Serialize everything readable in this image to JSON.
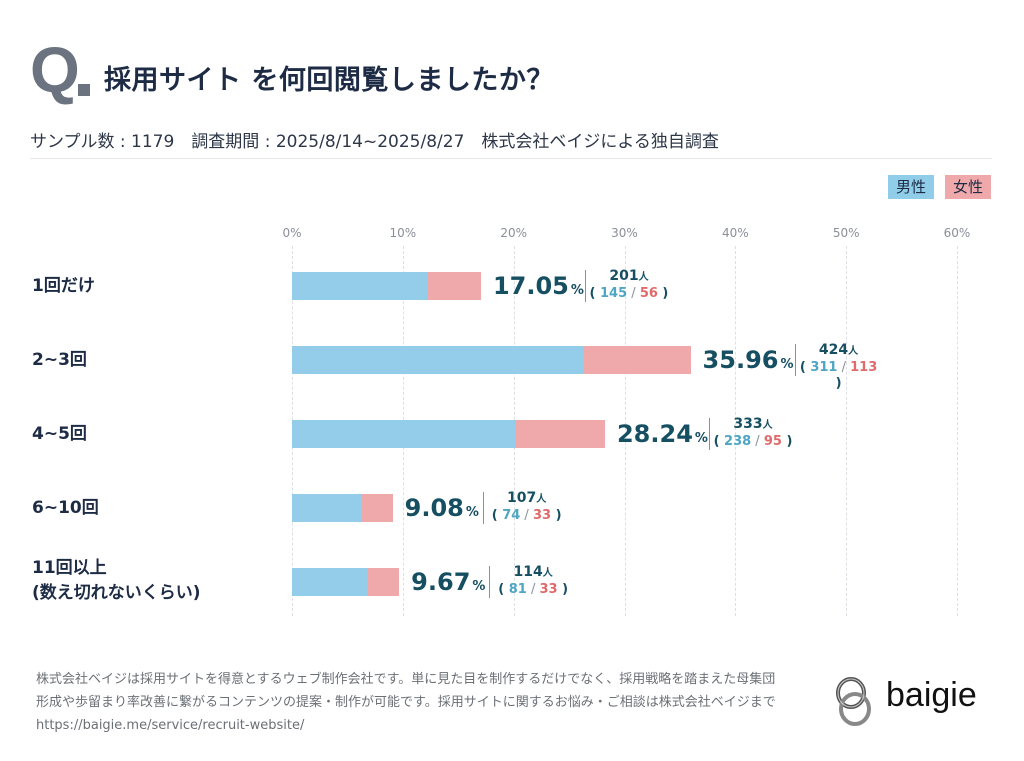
{
  "header": {
    "q_mark": "Q",
    "title": "採用サイト を何回閲覧しましたか？",
    "meta": "サンプル数 : 1179　調査期間 : 2025/8/14~2025/8/27　株式会社ベイジによる独自調査"
  },
  "legend": {
    "male": "男性",
    "female": "女性"
  },
  "colors": {
    "male": "#94cde9",
    "female": "#f0a9ab",
    "value_text": "#164f62",
    "male_text": "#4ea5c4",
    "female_text": "#e06a6c"
  },
  "chart_data": {
    "type": "bar",
    "orientation": "horizontal",
    "stacked": true,
    "title": "採用サイト を何回閲覧しましたか？",
    "xlabel": "",
    "ylabel": "",
    "xlim": [
      0,
      60
    ],
    "x_ticks": [
      "0%",
      "10%",
      "20%",
      "30%",
      "40%",
      "50%",
      "60%"
    ],
    "grid": true,
    "legend_position": "top-right",
    "categories": [
      "1回だけ",
      "2~3回",
      "4~5回",
      "6~10回",
      "11回以上\n(数え切れないくらい)"
    ],
    "category_lines": [
      [
        "1回だけ"
      ],
      [
        "2~3回"
      ],
      [
        "4~5回"
      ],
      [
        "6~10回"
      ],
      [
        "11回以上",
        "(数え切れないくらい)"
      ]
    ],
    "percent": [
      17.05,
      35.96,
      28.24,
      9.08,
      9.67
    ],
    "percent_labels": [
      "17.05",
      "35.96",
      "28.24",
      "9.08",
      "9.67"
    ],
    "percent_unit": "%",
    "total_counts": [
      201,
      424,
      333,
      107,
      114
    ],
    "count_unit": "人",
    "series": [
      {
        "name": "男性",
        "counts": [
          145,
          311,
          238,
          74,
          81
        ]
      },
      {
        "name": "女性",
        "counts": [
          56,
          113,
          95,
          33,
          33
        ]
      }
    ]
  },
  "footer": {
    "line1": "株式会社ベイジは採用サイトを得意とするウェブ制作会社です。単に見た目を制作するだけでなく、採用戦略を踏まえた母集団",
    "line2": "形成や歩留まり率改善に繋がるコンテンツの提案・制作が可能です。採用サイトに関するお悩み・ご相談は株式会社ベイジまで",
    "url": "https://baigie.me/service/recruit-website/"
  },
  "logo": {
    "text": "baigie",
    "icon": "baigie-logo-icon"
  }
}
